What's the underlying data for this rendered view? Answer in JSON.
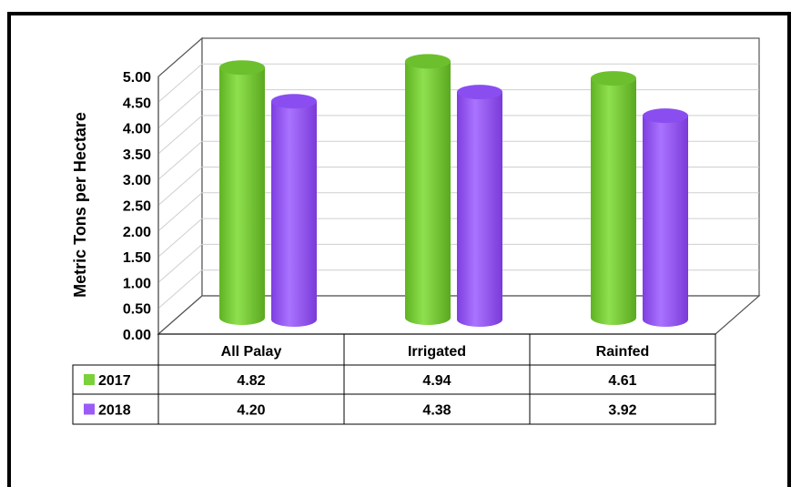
{
  "chart_data": {
    "type": "bar",
    "title": "",
    "xlabel": "",
    "ylabel": "Metric Tons per Hectare",
    "ylim": [
      0,
      5
    ],
    "yticks": [
      "0.00",
      "0.50",
      "1.00",
      "1.50",
      "2.00",
      "2.50",
      "3.00",
      "3.50",
      "4.00",
      "4.50",
      "5.00"
    ],
    "categories": [
      "All Palay",
      "Irrigated",
      "Rainfed"
    ],
    "series": [
      {
        "name": "2017",
        "values": [
          4.82,
          4.94,
          4.61
        ],
        "labels": [
          "4.82",
          "4.94",
          "4.61"
        ],
        "color": "#7ad13a"
      },
      {
        "name": "2018",
        "values": [
          4.2,
          4.38,
          3.92
        ],
        "labels": [
          "4.20",
          "4.38",
          "3.92"
        ],
        "color": "#9b5cf5"
      }
    ],
    "grid": true,
    "legend": "data table below chart"
  }
}
